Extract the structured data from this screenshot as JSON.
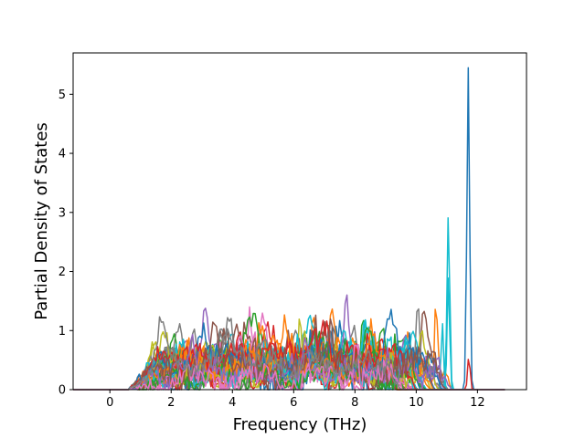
{
  "chart_data": {
    "type": "line",
    "title": "",
    "xlabel": "Frequency (THz)",
    "ylabel": "Partial Density of States",
    "xlim": [
      -1.2,
      13.6
    ],
    "ylim": [
      0,
      5.7
    ],
    "xticks": [
      0,
      2,
      4,
      6,
      8,
      10,
      12
    ],
    "yticks": [
      0,
      1,
      2,
      3,
      4,
      5
    ],
    "xtick_labels": [
      "0",
      "2",
      "4",
      "6",
      "8",
      "10",
      "12"
    ],
    "ytick_labels": [
      "0",
      "1",
      "2",
      "3",
      "4",
      "5"
    ],
    "grid": false,
    "legend": "none",
    "series_count": 48,
    "colors": [
      "#1f77b4",
      "#ff7f0e",
      "#2ca02c",
      "#d62728",
      "#9467bd",
      "#8c564b",
      "#e377c2",
      "#7f7f7f",
      "#bcbd22",
      "#17becf"
    ],
    "notable_peaks": [
      {
        "x": 11.7,
        "y": 5.45
      },
      {
        "x": 11.05,
        "y": 2.98
      },
      {
        "x": 10.05,
        "y": 1.68
      },
      {
        "x": 10.65,
        "y": 1.55
      },
      {
        "x": 6.2,
        "y": 1.28
      },
      {
        "x": 11.05,
        "y": 1.95
      },
      {
        "x": 10.85,
        "y": 1.15
      }
    ],
    "frequency_range": [
      -1.2,
      12.9
    ],
    "typical_dos_range": [
      0.1,
      0.9
    ]
  }
}
